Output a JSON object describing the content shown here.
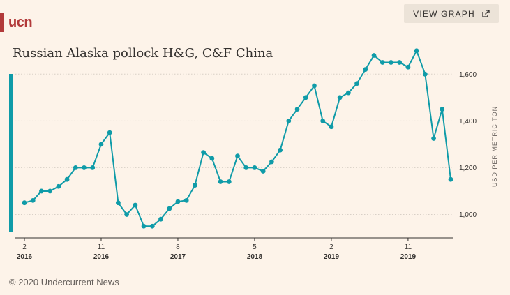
{
  "brand": {
    "logo_text": "ucn",
    "logo_color": "#b23a3a"
  },
  "header": {
    "view_graph_label": "VIEW GRAPH"
  },
  "footer": {
    "copyright": "© 2020 Undercurrent News"
  },
  "colors": {
    "line": "#0f9ba8",
    "grid": "#d8cfc6",
    "background": "#fdf3e9"
  },
  "chart_data": {
    "type": "line",
    "title": "Russian Alaska pollock H&G, C&F China",
    "ylabel": "USD PER METRIC TON",
    "xlabel": "",
    "ylim": [
      900,
      1750
    ],
    "y_ticks": [
      1000,
      1200,
      1400,
      1600
    ],
    "y_tick_labels": [
      "1,000",
      "1,200",
      "1,400",
      "1,600"
    ],
    "y_axis_side": "right",
    "grid": "horizontal dotted",
    "x_ticks": [
      {
        "index": 0,
        "month": "2",
        "year": "2016"
      },
      {
        "index": 9,
        "month": "11",
        "year": "2016"
      },
      {
        "index": 18,
        "month": "8",
        "year": "2017"
      },
      {
        "index": 27,
        "month": "5",
        "year": "2018"
      },
      {
        "index": 36,
        "month": "2",
        "year": "2019"
      },
      {
        "index": 45,
        "month": "11",
        "year": "2019"
      }
    ],
    "series": [
      {
        "values": [
          1050,
          1060,
          1100,
          1100,
          1120,
          1150,
          1200,
          1200,
          1200,
          1300,
          1350,
          1050,
          1000,
          1040,
          950,
          950,
          980,
          1025,
          1055,
          1060,
          1125,
          1265,
          1240,
          1140,
          1140,
          1250,
          1200,
          1200,
          1185,
          1225,
          1275,
          1400,
          1450,
          1500,
          1550,
          1400,
          1375,
          1500,
          1520,
          1560,
          1620,
          1680,
          1650,
          1650,
          1650,
          1630,
          1700,
          1600,
          1325,
          1450,
          1150
        ]
      }
    ]
  }
}
